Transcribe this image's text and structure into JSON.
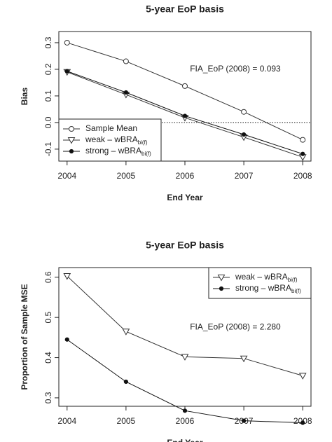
{
  "chart_data": [
    {
      "type": "line",
      "title": "5-year EoP basis",
      "xlabel": "End Year",
      "ylabel": "Bias",
      "annotation": "FIA_EoP (2008) = 0.093",
      "x": [
        2004,
        2005,
        2006,
        2007,
        2008
      ],
      "xlim": [
        2003.86,
        2008.14
      ],
      "xticks": [
        2004,
        2005,
        2006,
        2007,
        2008
      ],
      "ylim": [
        -0.145,
        0.342
      ],
      "yticks": [
        -0.1,
        {
          "value": 0,
          "label": "0.0"
        },
        0.1,
        0.2,
        0.3
      ],
      "hline": 0,
      "legend": "bottom-left",
      "series": [
        {
          "name": "Sample Mean",
          "color": "#333333",
          "marker": "circle",
          "values": [
            0.3,
            0.23,
            0.137,
            0.04,
            -0.065
          ]
        },
        {
          "name": "weak – wBRA",
          "name_subscript": "bi(f)",
          "color": "#333333",
          "marker": "triangle-down",
          "values": [
            0.19,
            0.105,
            0.018,
            -0.055,
            -0.13
          ]
        },
        {
          "name": "strong – wBRA",
          "name_subscript": "bi(f)",
          "color": "#111111",
          "marker": "dot",
          "values": [
            0.193,
            0.113,
            0.025,
            -0.045,
            -0.118
          ]
        }
      ]
    },
    {
      "type": "line",
      "title": "5-year EoP basis",
      "xlabel": "End Year",
      "ylabel": "Proportion of Sample MSE",
      "annotation": "FIA_EoP (2008) = 2.280",
      "x": [
        2004,
        2005,
        2006,
        2007,
        2008
      ],
      "xlim": [
        2003.86,
        2008.14
      ],
      "xticks": [
        2004,
        2005,
        2006,
        2007,
        2008
      ],
      "ylim": [
        0.279,
        0.624
      ],
      "yticks": [
        0.3,
        0.4,
        0.5,
        0.6
      ],
      "legend": "top-right",
      "series": [
        {
          "name": "weak – wBRA",
          "name_subscript": "bi(f)",
          "color": "#333333",
          "marker": "triangle-down",
          "values": [
            0.603,
            0.465,
            0.402,
            0.398,
            0.355
          ]
        },
        {
          "name": "strong – wBRA",
          "name_subscript": "bi(f)",
          "color": "#111111",
          "marker": "dot",
          "values": [
            0.445,
            0.34,
            0.268,
            0.243,
            0.238
          ]
        }
      ]
    }
  ]
}
